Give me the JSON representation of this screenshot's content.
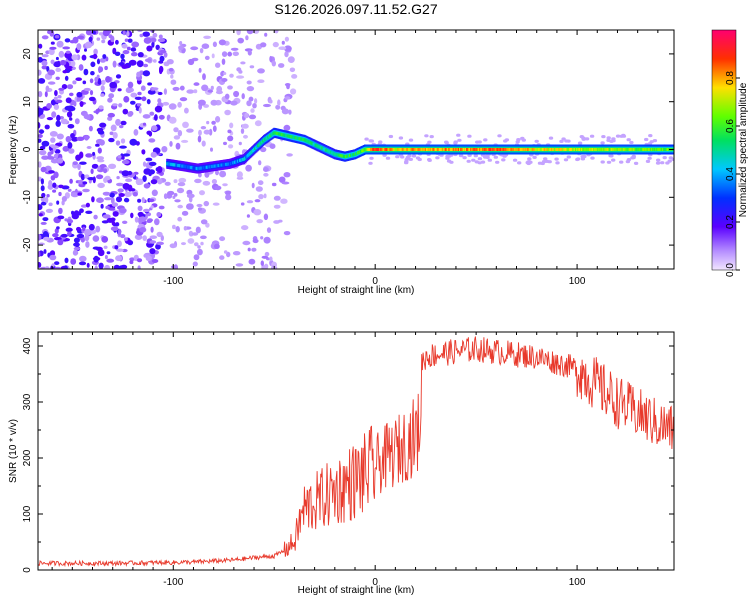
{
  "title": "S126.2026.097.11.52.G27",
  "chart_data": [
    {
      "type": "heatmap",
      "name": "spectrogram",
      "xlabel": "Height of straight line (km)",
      "ylabel": "Frequency (Hz)",
      "xlim": [
        -167,
        148
      ],
      "ylim": [
        -25,
        25
      ],
      "xticks": [
        -100,
        0,
        100
      ],
      "yticks": [
        -20,
        -10,
        0,
        10,
        20
      ],
      "colorbar": {
        "label": "Normalized spectral amplitude",
        "ticks": [
          0.0,
          0.2,
          0.4,
          0.6,
          0.8
        ],
        "range": [
          0,
          1
        ]
      },
      "ridge": {
        "x": [
          -103,
          -95,
          -88,
          -80,
          -72,
          -65,
          -60,
          -55,
          -50,
          -45,
          -40,
          -35,
          -30,
          -25,
          -20,
          -15,
          -10,
          -5,
          0,
          10,
          20,
          40,
          60,
          80,
          100,
          120,
          148
        ],
        "freq": [
          -3,
          -3.5,
          -4,
          -3.5,
          -3,
          -2,
          0,
          2,
          3.5,
          3,
          2.5,
          2,
          1,
          0,
          -1,
          -1.5,
          -1,
          0,
          0,
          0,
          0,
          0,
          0,
          0,
          0,
          0,
          0
        ],
        "amplitude": [
          0.4,
          0.35,
          0.35,
          0.35,
          0.35,
          0.4,
          0.45,
          0.5,
          0.55,
          0.55,
          0.55,
          0.55,
          0.5,
          0.5,
          0.5,
          0.55,
          0.55,
          0.6,
          0.9,
          0.75,
          0.8,
          0.8,
          0.85,
          0.75,
          0.7,
          0.65,
          0.6
        ]
      },
      "noise_region_x": [
        -167,
        -60
      ]
    },
    {
      "type": "line",
      "name": "snr",
      "xlabel": "Height of straight line (km)",
      "ylabel": "SNR (10 * v/v)",
      "xlim": [
        -167,
        148
      ],
      "ylim": [
        0,
        425
      ],
      "xticks": [
        -100,
        0,
        100
      ],
      "yticks": [
        0,
        100,
        200,
        300,
        400
      ],
      "color": "#e8392b",
      "series": [
        {
          "name": "SNR",
          "x": [
            -167,
            -150,
            -130,
            -110,
            -90,
            -70,
            -60,
            -50,
            -45,
            -40,
            -37,
            -35,
            -30,
            -25,
            -20,
            -15,
            -10,
            -5,
            0,
            5,
            10,
            15,
            20,
            22,
            23,
            25,
            30,
            40,
            50,
            60,
            70,
            80,
            90,
            100,
            110,
            120,
            130,
            140,
            148
          ],
          "y": [
            12,
            12,
            12,
            13,
            14,
            18,
            22,
            25,
            35,
            50,
            90,
            110,
            120,
            130,
            140,
            150,
            160,
            170,
            185,
            200,
            210,
            225,
            240,
            250,
            370,
            380,
            385,
            390,
            395,
            390,
            385,
            380,
            370,
            360,
            330,
            300,
            280,
            260,
            250
          ]
        }
      ]
    }
  ]
}
